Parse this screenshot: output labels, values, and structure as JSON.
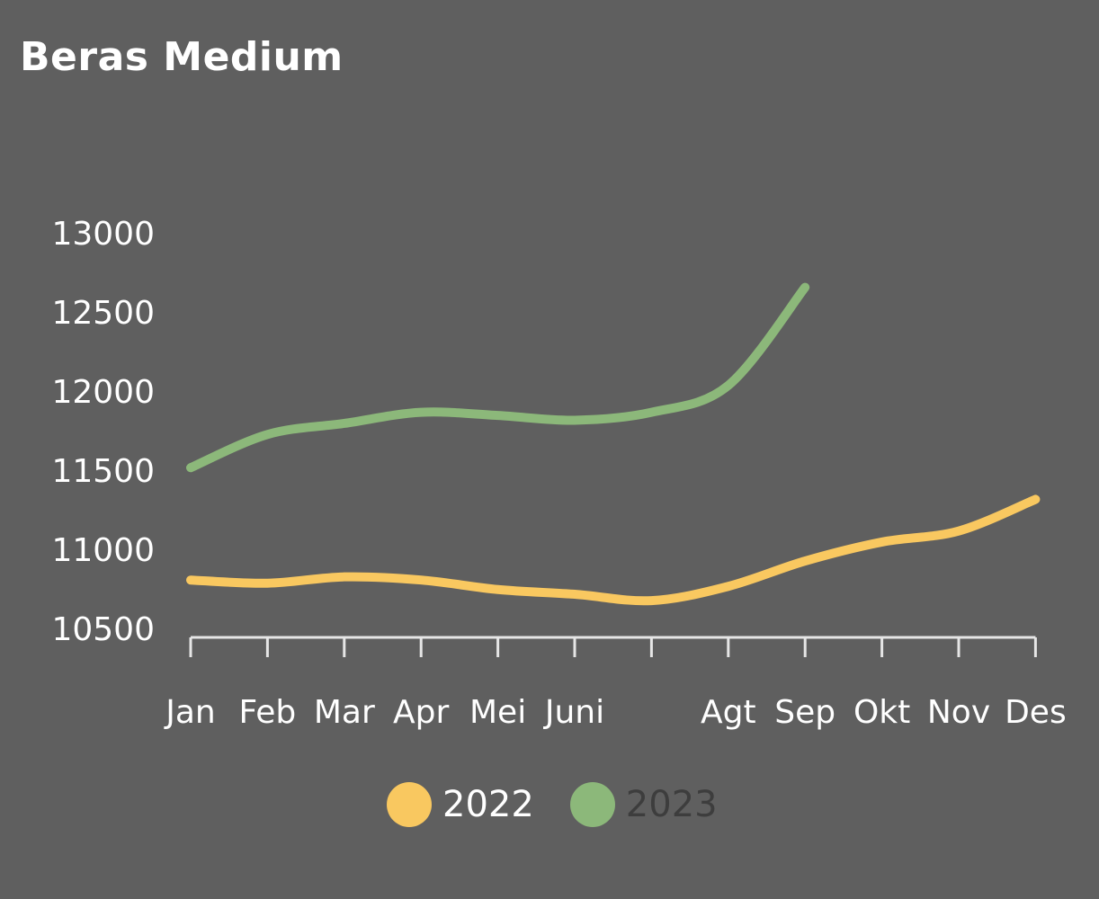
{
  "chart_data": {
    "type": "line",
    "title": "Beras Medium",
    "xlabel": "",
    "ylabel": "",
    "x_tick_labels": [
      "Jan",
      "Feb",
      "Mar",
      "Apr",
      "Mei",
      "Juni",
      "",
      "Agt",
      "Sep",
      "Okt",
      "Nov",
      "Des"
    ],
    "y_ticks": [
      10500,
      11000,
      11500,
      12000,
      12500,
      13000
    ],
    "y_tick_labels": [
      "10500",
      "11000",
      "11500",
      "12000",
      "12500",
      "13000"
    ],
    "ylim": [
      10500,
      13000
    ],
    "grid": false,
    "legend_position": "bottom",
    "series": [
      {
        "name": "2022",
        "color": "#f9c860",
        "values": [
          10800,
          10780,
          10820,
          10800,
          10740,
          10710,
          10670,
          10760,
          10920,
          11040,
          11110,
          11310
        ]
      },
      {
        "name": "2023",
        "color": "#8cb87a",
        "values": [
          11510,
          11720,
          11790,
          11860,
          11840,
          11810,
          11860,
          12030,
          12650
        ]
      }
    ]
  }
}
